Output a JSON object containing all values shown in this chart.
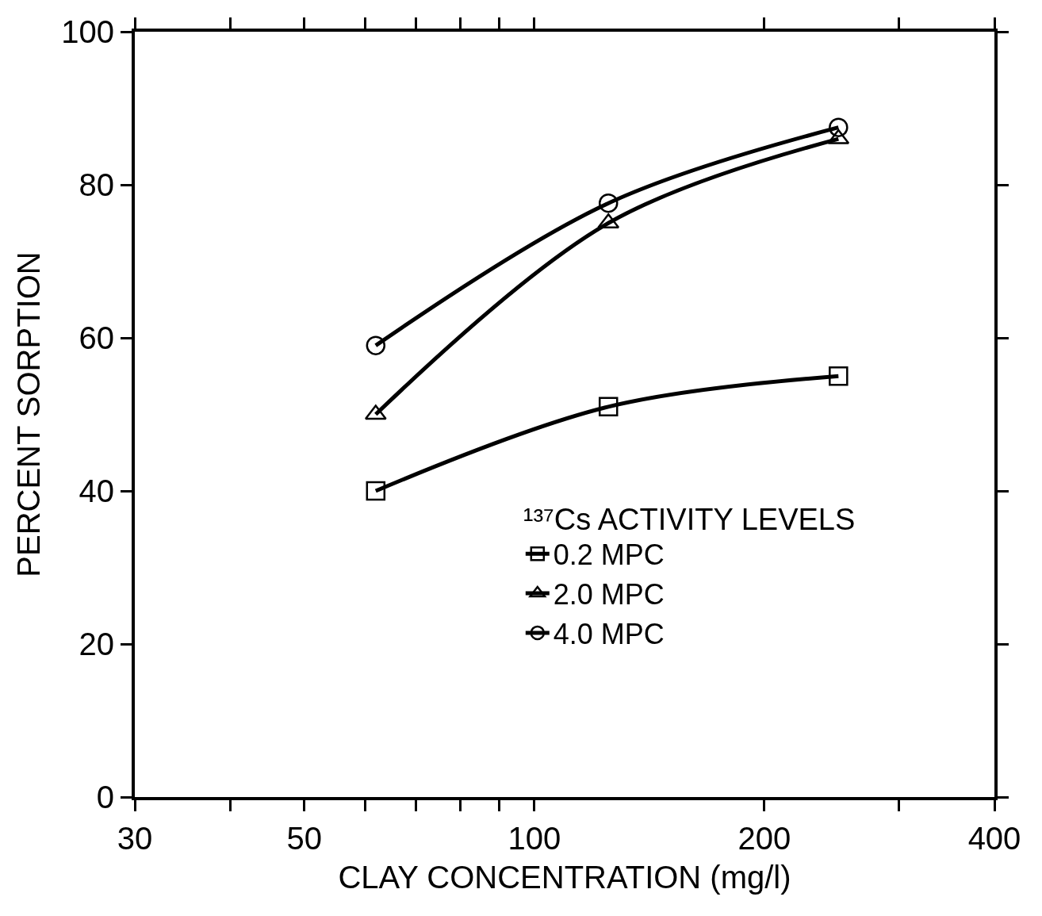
{
  "chart_data": {
    "type": "line",
    "xlabel": "CLAY CONCENTRATION (mg/l)",
    "ylabel": "PERCENT SORPTION",
    "legend_title": "¹³⁷Cs ACTIVITY LEVELS",
    "log": "x",
    "legend": "bottom right",
    "line_style": "solid",
    "xlim": [
      30,
      400
    ],
    "xticks": [
      30,
      {
        "value": 40,
        "label": null
      },
      50,
      {
        "value": 60,
        "label": null
      },
      {
        "value": 70,
        "label": null
      },
      {
        "value": 80,
        "label": null
      },
      {
        "value": 90,
        "label": null
      },
      100,
      200,
      {
        "value": 300,
        "label": null
      },
      400
    ],
    "ylim": [
      0,
      100
    ],
    "yticks": [
      0,
      20,
      40,
      60,
      80,
      100
    ],
    "x": [
      62,
      125,
      250
    ],
    "series": [
      {
        "name": "0.2 MPC",
        "color": "#000000",
        "marker": "square",
        "values": [
          40,
          51,
          55
        ]
      },
      {
        "name": "2.0 MPC",
        "color": "#000000",
        "marker": "triangle",
        "values": [
          50,
          75,
          86
        ]
      },
      {
        "name": "4.0 MPC",
        "color": "#000000",
        "marker": "circle",
        "values": [
          59,
          77.6,
          87.5
        ]
      }
    ]
  }
}
